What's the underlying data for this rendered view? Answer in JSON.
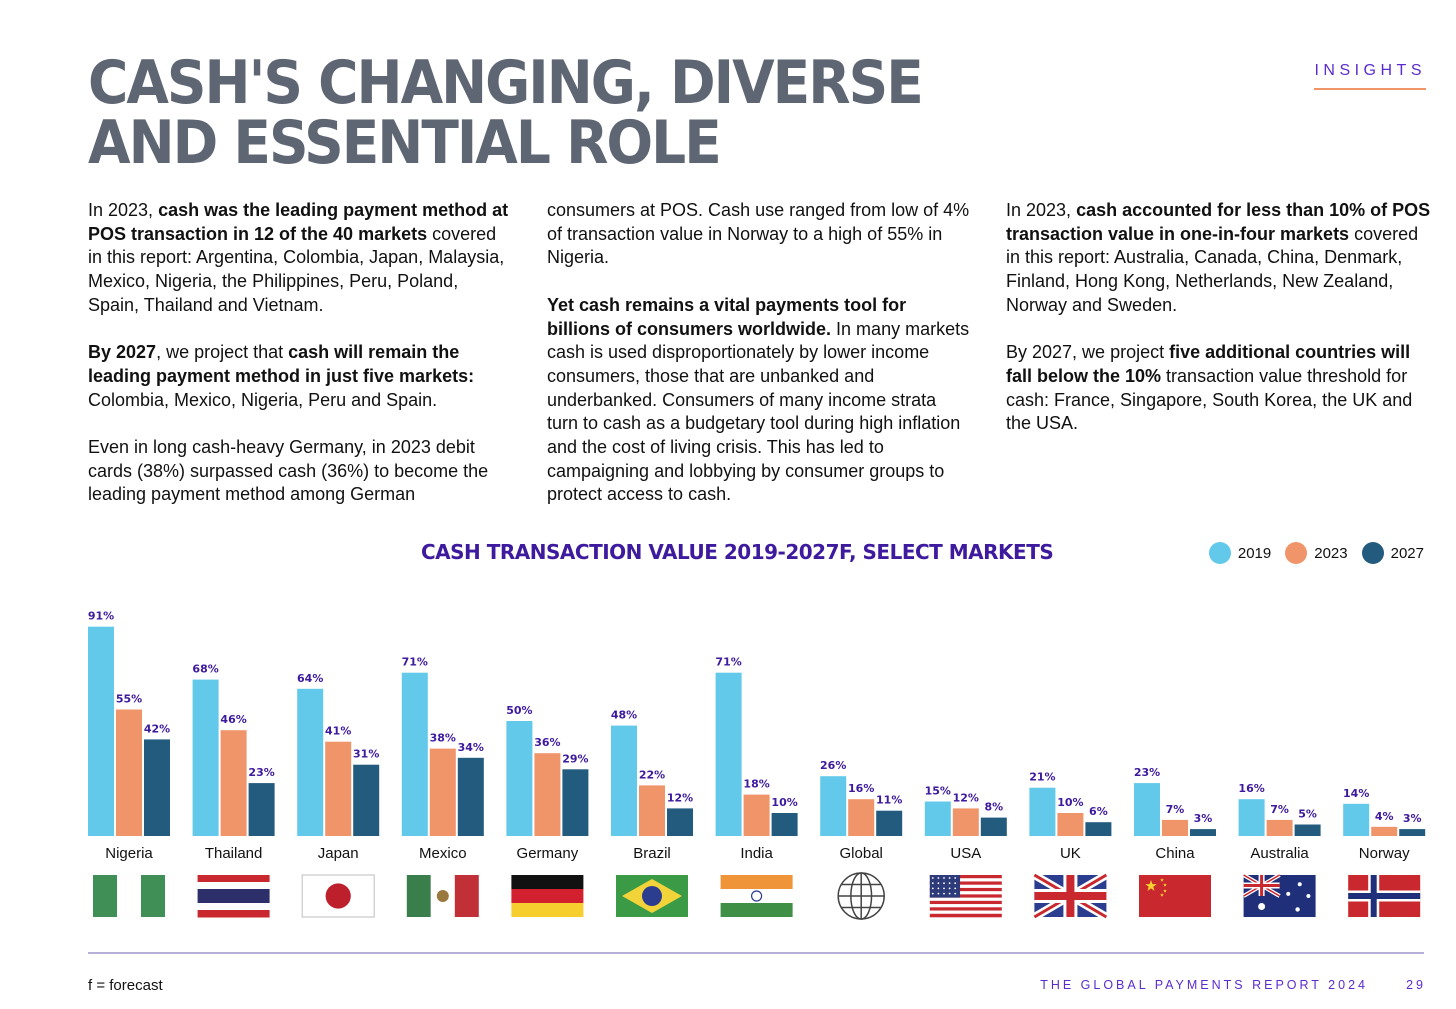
{
  "header": {
    "title_line1": "CASH'S CHANGING, DIVERSE",
    "title_line2": "AND ESSENTIAL ROLE",
    "section_tag": "INSIGHTS"
  },
  "body_text": {
    "col1": [
      [
        {
          "t": "In 2023, ",
          "b": false
        },
        {
          "t": "cash was the leading payment method at POS transaction in 12 of the 40 markets",
          "b": true
        },
        {
          "t": " covered in this report: Argentina, Colombia, Japan, Malaysia, Mexico, Nigeria, the Philippines, Peru, Poland, Spain, Thailand and Vietnam.",
          "b": false
        }
      ],
      [
        {
          "t": "By 2027",
          "b": true
        },
        {
          "t": ", we project that ",
          "b": false
        },
        {
          "t": "cash will remain the leading payment method in just five markets:",
          "b": true
        },
        {
          "t": " Colombia, Mexico, Nigeria, Peru and Spain.",
          "b": false
        }
      ],
      [
        {
          "t": "Even in long cash-heavy Germany, in 2023 debit cards (38%) surpassed cash (36%) to become the leading payment method among German",
          "b": false
        }
      ]
    ],
    "col2": [
      [
        {
          "t": "consumers at POS. Cash use ranged from low of 4% of transaction value in Norway to a high of 55% in Nigeria.",
          "b": false
        }
      ],
      [
        {
          "t": "Yet cash remains a vital payments tool for billions of consumers worldwide.",
          "b": true
        },
        {
          "t": " In many markets cash is used disproportionately by lower income consumers, those that are unbanked and underbanked. Consumers of many income strata turn to cash as a budgetary tool during high inflation and the cost of living crisis. This has led to campaigning and lobbying by consumer groups to protect access to cash.",
          "b": false
        }
      ]
    ],
    "col3": [
      [
        {
          "t": "In 2023, ",
          "b": false
        },
        {
          "t": "cash accounted for less than 10% of POS transaction value in one-in-four markets",
          "b": true
        },
        {
          "t": " covered in this report: Australia, Canada, China, Denmark, Finland, Hong Kong, Netherlands, New Zealand, Norway and Sweden.",
          "b": false
        }
      ],
      [
        {
          "t": "By 2027, we project ",
          "b": false
        },
        {
          "t": "five additional countries will fall below the 10%",
          "b": true
        },
        {
          "t": " transaction value threshold for cash: France, Singapore, South Korea, the UK and the USA.",
          "b": false
        }
      ]
    ]
  },
  "chart_data": {
    "type": "bar",
    "title": "CASH TRANSACTION VALUE 2019-2027F, SELECT MARKETS",
    "xlabel": "",
    "ylabel": "",
    "ylim": [
      0,
      100
    ],
    "unit": "%",
    "legend_position": "top-right",
    "categories": [
      "Nigeria",
      "Thailand",
      "Japan",
      "Mexico",
      "Germany",
      "Brazil",
      "India",
      "Global",
      "USA",
      "UK",
      "China",
      "Australia",
      "Norway"
    ],
    "series": [
      {
        "name": "2019",
        "color": "#62c9ea",
        "values": [
          91,
          68,
          64,
          71,
          50,
          48,
          71,
          26,
          15,
          21,
          23,
          16,
          14
        ]
      },
      {
        "name": "2023",
        "color": "#f0956a",
        "values": [
          55,
          46,
          41,
          38,
          36,
          22,
          18,
          16,
          12,
          10,
          7,
          7,
          4
        ]
      },
      {
        "name": "2027",
        "color": "#235b7e",
        "values": [
          42,
          23,
          31,
          34,
          29,
          12,
          10,
          11,
          8,
          6,
          3,
          5,
          3
        ]
      }
    ],
    "flags": [
      "nigeria-flag-icon",
      "thailand-flag-icon",
      "japan-flag-icon",
      "mexico-flag-icon",
      "germany-flag-icon",
      "brazil-flag-icon",
      "india-flag-icon",
      "globe-icon",
      "usa-flag-icon",
      "uk-flag-icon",
      "china-flag-icon",
      "australia-flag-icon",
      "norway-flag-icon"
    ],
    "label_color": "#3d1a9e"
  },
  "footer": {
    "footnote": "f = forecast",
    "report_name": "THE GLOBAL PAYMENTS REPORT 2024",
    "page_number": "29"
  }
}
